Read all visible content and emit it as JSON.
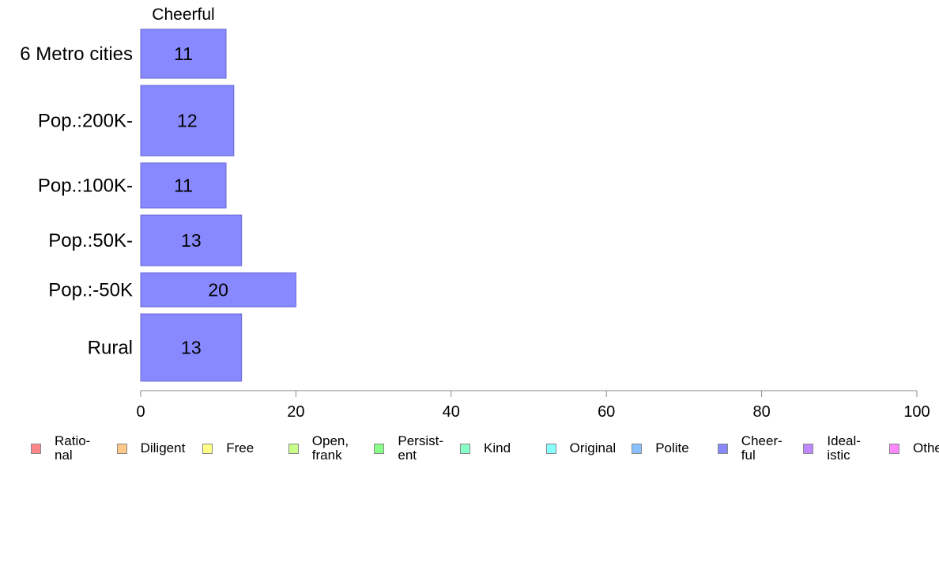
{
  "chart_data": {
    "type": "bar",
    "orientation": "horizontal",
    "title": "Cheerful",
    "categories": [
      "6 Metro cities",
      "Pop.:200K-",
      "Pop.:100K-",
      "Pop.:50K-",
      "Pop.:-50K",
      "Rural"
    ],
    "values": [
      11,
      12,
      11,
      13,
      20,
      13
    ],
    "data_labels": [
      "11",
      "12",
      "11",
      "13",
      "20",
      "13"
    ],
    "xlim": [
      0,
      100
    ],
    "x_ticks": [
      0,
      20,
      40,
      60,
      80,
      100
    ],
    "x_tick_labels": [
      "0",
      "20",
      "40",
      "60",
      "80",
      "100"
    ],
    "bar_color": "#8888ff",
    "grid": false,
    "legend_position": "bottom",
    "legend": [
      {
        "label": "Ratio-\nnal",
        "color": "#ff8888"
      },
      {
        "label": "Diligent",
        "color": "#ffc888"
      },
      {
        "label": "Free",
        "color": "#ffff88"
      },
      {
        "label": "Open,\nfrank",
        "color": "#c8ff88"
      },
      {
        "label": "Persist-\nent",
        "color": "#88ff88"
      },
      {
        "label": "Kind",
        "color": "#88ffc8"
      },
      {
        "label": "Original",
        "color": "#88ffff"
      },
      {
        "label": "Polite",
        "color": "#88c0ff"
      },
      {
        "label": "Cheer-\nful",
        "color": "#8888ff"
      },
      {
        "label": "Ideal-\nistic",
        "color": "#c088ff"
      },
      {
        "label": "Other",
        "color": "#ff88ff"
      }
    ]
  }
}
